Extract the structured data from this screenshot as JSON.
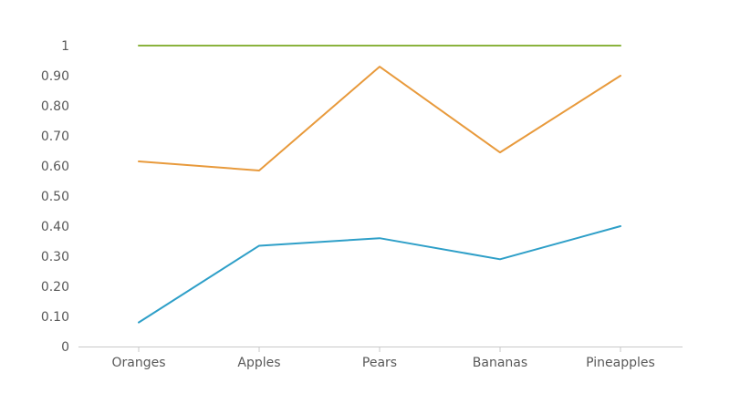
{
  "chart_data": {
    "type": "line",
    "categories": [
      "Oranges",
      "Apples",
      "Pears",
      "Bananas",
      "Pineapples"
    ],
    "ylim": [
      0,
      1
    ],
    "yticks": [
      "0",
      "0.10",
      "0.20",
      "0.30",
      "0.40",
      "0.50",
      "0.60",
      "0.70",
      "0.80",
      "0.90",
      "1"
    ],
    "grid": false,
    "legend": "none",
    "series": [
      {
        "color": "#2e9fc8",
        "values": [
          0.08,
          0.335,
          0.36,
          0.29,
          0.4
        ]
      },
      {
        "color": "#e89a3c",
        "values": [
          0.615,
          0.585,
          0.93,
          0.645,
          0.9
        ]
      },
      {
        "color": "#8ab33d",
        "values": [
          1.0,
          1.0,
          1.0,
          1.0,
          1.0
        ]
      }
    ],
    "axis_color": "#c8c8c8"
  }
}
